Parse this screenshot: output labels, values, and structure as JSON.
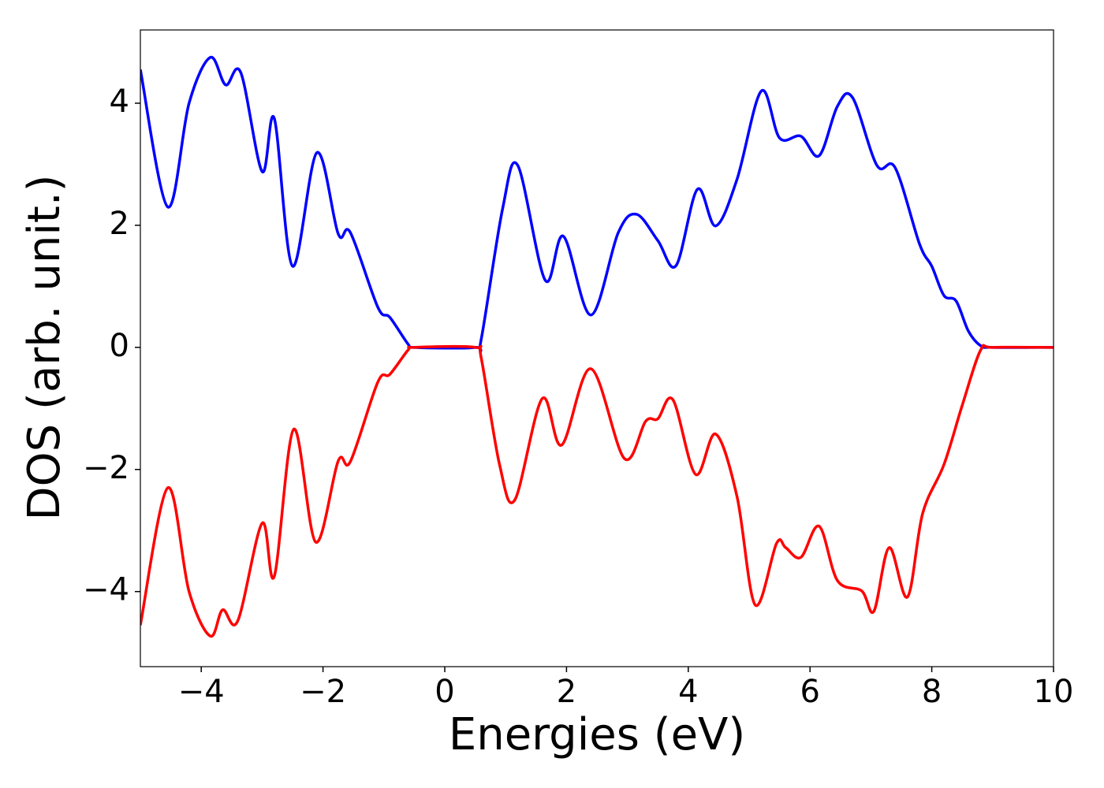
{
  "chart_data": {
    "type": "line",
    "xlabel": "Energies (eV)",
    "ylabel": "DOS (arb. unit.)",
    "xlim": [
      -5,
      10
    ],
    "ylim": [
      -5.23,
      5.2
    ],
    "xticks": [
      {
        "value": -4,
        "label": "−4"
      },
      {
        "value": -2,
        "label": "−2"
      },
      0,
      2,
      4,
      6,
      8,
      10
    ],
    "yticks": [
      {
        "value": -4,
        "label": "−4"
      },
      {
        "value": -2,
        "label": "−2"
      },
      0,
      2,
      4
    ],
    "grid": false,
    "series": [
      {
        "color": "#0000ff",
        "x": [
          -5,
          -4.55,
          -4.2,
          -3.85,
          -3.6,
          -3.35,
          -3.0,
          -2.8,
          -2.5,
          -2.1,
          -1.75,
          -1.55,
          -1.1,
          -0.9,
          -0.6,
          -0.5,
          0.5,
          0.6,
          0.95,
          1.2,
          1.65,
          1.95,
          2.4,
          2.85,
          3.15,
          3.5,
          3.8,
          4.15,
          4.45,
          4.8,
          5.2,
          5.5,
          5.85,
          6.15,
          6.45,
          6.7,
          7.1,
          7.4,
          7.8,
          8.0,
          8.2,
          8.4,
          8.6,
          8.8,
          9.0,
          10
        ],
        "values": [
          4.55,
          2.3,
          4.0,
          4.75,
          4.3,
          4.5,
          2.88,
          3.75,
          1.33,
          3.19,
          1.86,
          1.88,
          0.66,
          0.49,
          0.05,
          0,
          0,
          0.14,
          2.27,
          2.98,
          1.1,
          1.82,
          0.53,
          1.88,
          2.18,
          1.75,
          1.34,
          2.59,
          1.99,
          2.75,
          4.2,
          3.43,
          3.46,
          3.14,
          3.95,
          4.09,
          2.98,
          2.94,
          1.69,
          1.33,
          0.85,
          0.76,
          0.27,
          0.03,
          0,
          0
        ]
      },
      {
        "color": "#ff0000",
        "x": [
          -5,
          -4.55,
          -4.2,
          -3.85,
          -3.65,
          -3.4,
          -3.0,
          -2.8,
          -2.48,
          -2.12,
          -1.75,
          -1.55,
          -1.1,
          -0.9,
          -0.6,
          -0.5,
          0.5,
          0.6,
          0.9,
          1.15,
          1.6,
          1.92,
          2.4,
          2.95,
          3.3,
          3.5,
          3.75,
          4.12,
          4.45,
          4.8,
          5.1,
          5.45,
          5.6,
          5.85,
          6.15,
          6.45,
          6.85,
          7.05,
          7.3,
          7.6,
          7.85,
          8.2,
          8.5,
          8.8,
          9.0,
          10
        ],
        "values": [
          -4.55,
          -2.3,
          -4.0,
          -4.73,
          -4.3,
          -4.48,
          -2.88,
          -3.75,
          -1.34,
          -3.19,
          -1.86,
          -1.87,
          -0.57,
          -0.44,
          -0.04,
          0,
          0,
          -0.18,
          -1.92,
          -2.5,
          -0.84,
          -1.6,
          -0.35,
          -1.82,
          -1.21,
          -1.17,
          -0.86,
          -2.08,
          -1.42,
          -2.44,
          -4.22,
          -3.21,
          -3.28,
          -3.44,
          -2.93,
          -3.82,
          -3.99,
          -4.32,
          -3.28,
          -4.09,
          -2.72,
          -1.92,
          -0.95,
          -0.05,
          0,
          0
        ]
      }
    ]
  }
}
